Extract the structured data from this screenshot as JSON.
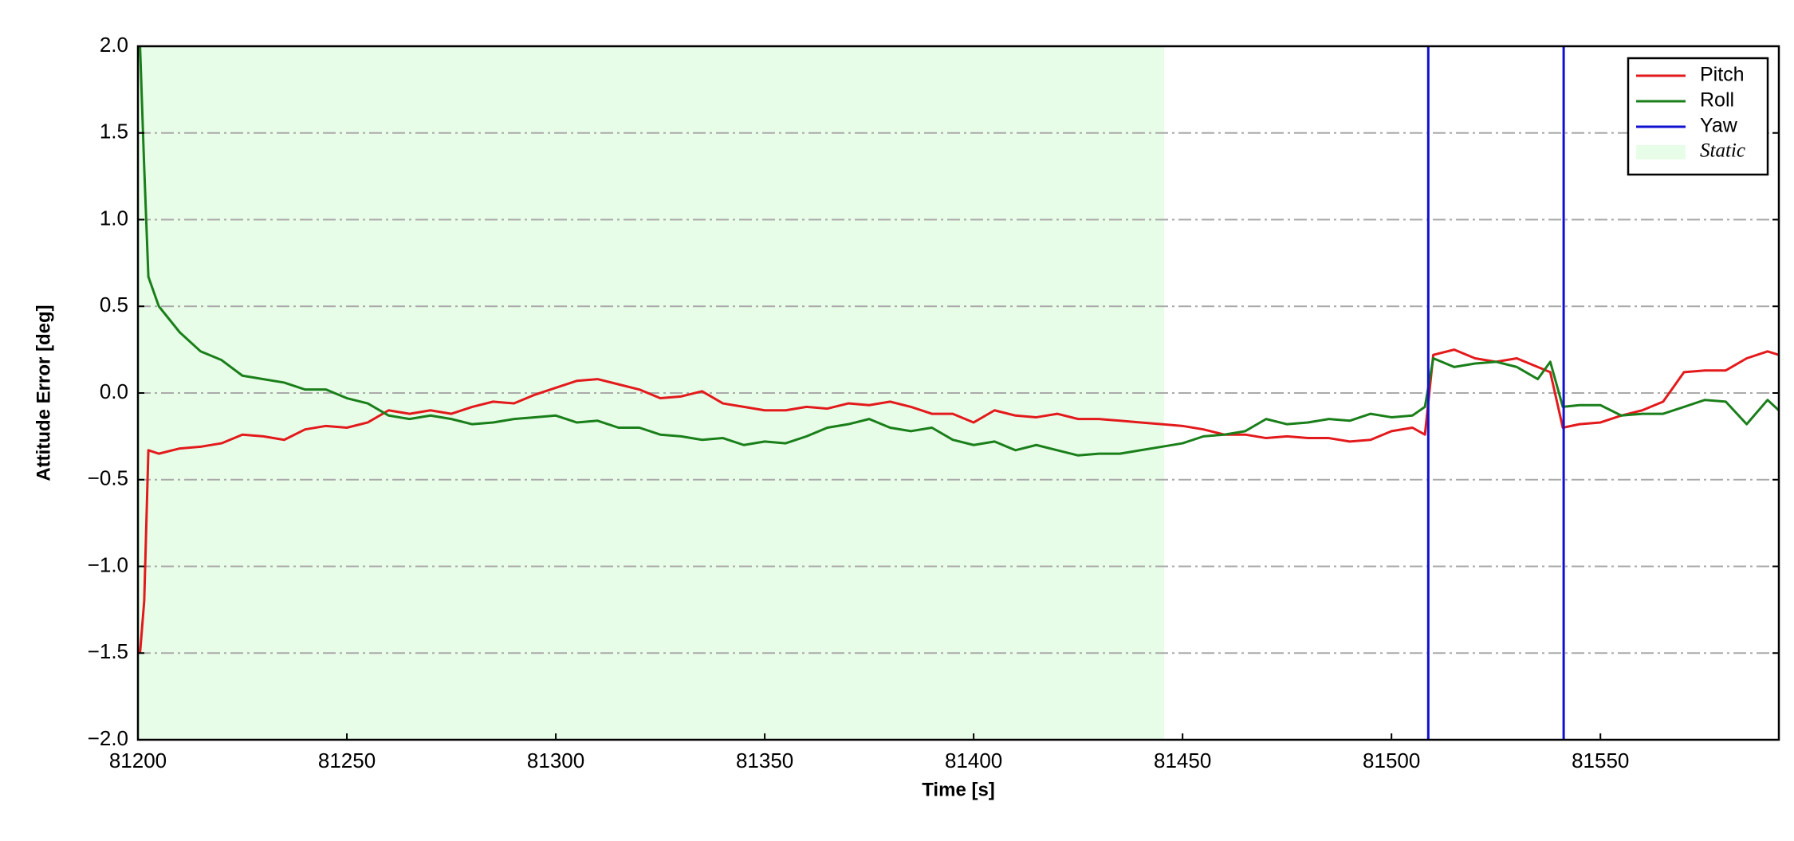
{
  "chart_data": {
    "type": "line",
    "xlabel": "Time [s]",
    "ylabel": "Attitude Error [deg]",
    "xlim": [
      81200,
      81592.7
    ],
    "ylim": [
      -2,
      2
    ],
    "xticks": [
      81200,
      81250,
      81300,
      81350,
      81400,
      81450,
      81500,
      81550
    ],
    "yticks": [
      {
        "value": -2,
        "label": "−2.0"
      },
      {
        "value": -1.5,
        "label": "−1.5"
      },
      {
        "value": -1,
        "label": "−1.0"
      },
      {
        "value": -0.5,
        "label": "−0.5"
      },
      {
        "value": 0,
        "label": "0.0"
      },
      0.5,
      {
        "value": 1,
        "label": "1.0"
      },
      1.5,
      {
        "value": 2,
        "label": "2.0"
      }
    ],
    "grid": true,
    "legend": "upper right",
    "span": {
      "name": "Static",
      "color": "#e8fde8",
      "xrange": [
        81200,
        81445.6
      ]
    },
    "x": [
      81200.5,
      81201.5,
      81202.5,
      81205,
      81210,
      81215,
      81220,
      81225,
      81230,
      81235,
      81240,
      81245,
      81250,
      81255,
      81260,
      81265,
      81270,
      81275,
      81280,
      81285,
      81290,
      81295,
      81300,
      81305,
      81310,
      81315,
      81320,
      81325,
      81330,
      81335,
      81340,
      81345,
      81350,
      81355,
      81360,
      81365,
      81370,
      81375,
      81380,
      81385,
      81390,
      81395,
      81400,
      81405,
      81410,
      81415,
      81420,
      81425,
      81430,
      81435,
      81440,
      81445,
      81450,
      81455,
      81460,
      81465,
      81470,
      81475,
      81480,
      81485,
      81490,
      81495,
      81500,
      81505,
      81508,
      81510,
      81515,
      81520,
      81525,
      81530,
      81535,
      81538,
      81541,
      81545,
      81550,
      81555,
      81560,
      81565,
      81570,
      81575,
      81580,
      81585,
      81590,
      81592.7
    ],
    "series": [
      {
        "name": "Pitch",
        "color": "#e31a1c",
        "values": [
          -1.5,
          -1.2,
          -0.33,
          -0.35,
          -0.32,
          -0.31,
          -0.29,
          -0.24,
          -0.25,
          -0.27,
          -0.21,
          -0.19,
          -0.2,
          -0.17,
          -0.1,
          -0.12,
          -0.1,
          -0.12,
          -0.08,
          -0.05,
          -0.06,
          -0.01,
          0.03,
          0.07,
          0.08,
          0.05,
          0.02,
          -0.03,
          -0.02,
          0.01,
          -0.06,
          -0.08,
          -0.1,
          -0.1,
          -0.08,
          -0.09,
          -0.06,
          -0.07,
          -0.05,
          -0.08,
          -0.12,
          -0.12,
          -0.17,
          -0.1,
          -0.13,
          -0.14,
          -0.12,
          -0.15,
          -0.15,
          -0.16,
          -0.17,
          -0.18,
          -0.19,
          -0.21,
          -0.24,
          -0.24,
          -0.26,
          -0.25,
          -0.26,
          -0.26,
          -0.28,
          -0.27,
          -0.22,
          -0.2,
          -0.24,
          0.22,
          0.25,
          0.2,
          0.18,
          0.2,
          0.15,
          0.12,
          -0.2,
          -0.18,
          -0.17,
          -0.13,
          -0.1,
          -0.05,
          0.12,
          0.13,
          0.13,
          0.2,
          0.24,
          0.22
        ]
      },
      {
        "name": "Roll",
        "color": "#1a7f1a",
        "values": [
          2,
          1.3,
          0.67,
          0.5,
          0.35,
          0.24,
          0.19,
          0.1,
          0.08,
          0.06,
          0.02,
          0.02,
          -0.03,
          -0.06,
          -0.13,
          -0.15,
          -0.13,
          -0.15,
          -0.18,
          -0.17,
          -0.15,
          -0.14,
          -0.13,
          -0.17,
          -0.16,
          -0.2,
          -0.2,
          -0.24,
          -0.25,
          -0.27,
          -0.26,
          -0.3,
          -0.28,
          -0.29,
          -0.25,
          -0.2,
          -0.18,
          -0.15,
          -0.2,
          -0.22,
          -0.2,
          -0.27,
          -0.3,
          -0.28,
          -0.33,
          -0.3,
          -0.33,
          -0.36,
          -0.35,
          -0.35,
          -0.33,
          -0.31,
          -0.29,
          -0.25,
          -0.24,
          -0.22,
          -0.15,
          -0.18,
          -0.17,
          -0.15,
          -0.16,
          -0.12,
          -0.14,
          -0.13,
          -0.08,
          0.2,
          0.15,
          0.17,
          0.18,
          0.15,
          0.08,
          0.18,
          -0.08,
          -0.07,
          -0.07,
          -0.13,
          -0.12,
          -0.12,
          -0.08,
          -0.04,
          -0.05,
          -0.18,
          -0.04,
          -0.1
        ]
      },
      {
        "name": "Yaw",
        "color": "#1010d0",
        "x": [
          81508.8,
          81508.8,
          81541.2,
          81541.2
        ],
        "values": [
          -2,
          2,
          2,
          -2
        ]
      }
    ]
  }
}
